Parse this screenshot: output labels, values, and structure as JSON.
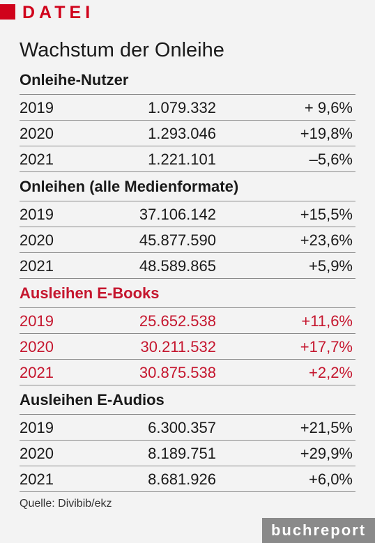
{
  "header": {
    "label": "DATEI"
  },
  "title": "Wachstum der Onleihe",
  "sections": [
    {
      "heading": "Onleihe-Nutzer",
      "rows": [
        {
          "year": "2019",
          "value": "1.079.332",
          "change": "+ 9,6%"
        },
        {
          "year": "2020",
          "value": "1.293.046",
          "change": "+19,8%"
        },
        {
          "year": "2021",
          "value": "1.221.101",
          "change": "–5,6%"
        }
      ]
    },
    {
      "heading": "Onleihen (alle Medienformate)",
      "rows": [
        {
          "year": "2019",
          "value": "37.106.142",
          "change": "+15,5%"
        },
        {
          "year": "2020",
          "value": "45.877.590",
          "change": "+23,6%"
        },
        {
          "year": "2021",
          "value": "48.589.865",
          "change": "+5,9%"
        }
      ]
    },
    {
      "heading": "Ausleihen E-Books",
      "rows": [
        {
          "year": "2019",
          "value": "25.652.538",
          "change": "+11,6%"
        },
        {
          "year": "2020",
          "value": "30.211.532",
          "change": "+17,7%"
        },
        {
          "year": "2021",
          "value": "30.875.538",
          "change": "+2,2%"
        }
      ]
    },
    {
      "heading": "Ausleihen E-Audios",
      "rows": [
        {
          "year": "2019",
          "value": "6.300.357",
          "change": "+21,5%"
        },
        {
          "year": "2020",
          "value": "8.189.751",
          "change": "+29,9%"
        },
        {
          "year": "2021",
          "value": "8.681.926",
          "change": "+6,0%"
        }
      ]
    }
  ],
  "source": "Quelle: Divibib/ekz",
  "brand": "buchreport",
  "colors": {
    "accent": "#c5162e",
    "brand_bg": "#8a8a8a",
    "background": "#f3f3f3"
  }
}
